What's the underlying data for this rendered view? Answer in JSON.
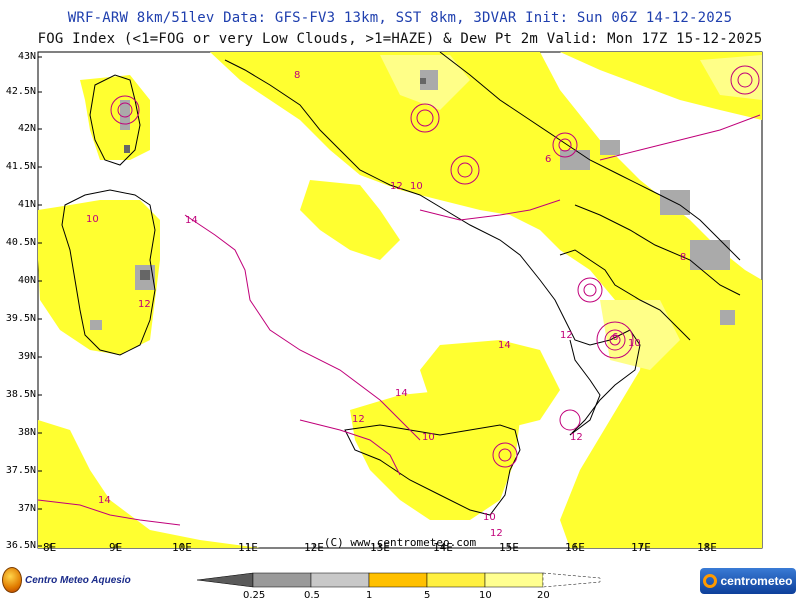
{
  "header": {
    "line1": "WRF-ARW 8km/51lev  Data: GFS-FV3 13km, SST 8km, 3DVAR  Init: Sun 06Z 14-12-2025",
    "line2": "FOG Index (<1=FOG or very Low Clouds, >1=HAZE) & Dew Pt 2m  Valid: Mon 17Z 15-12-2025"
  },
  "axes": {
    "lat_labels": [
      "43N",
      "42.5N",
      "42N",
      "41.5N",
      "41N",
      "40.5N",
      "40N",
      "39.5N",
      "39N",
      "38.5N",
      "38N",
      "37.5N",
      "37N",
      "36.5N"
    ],
    "lon_labels": [
      "8E",
      "9E",
      "10E",
      "11E",
      "12E",
      "13E",
      "14E",
      "15E",
      "16E",
      "17E",
      "18E"
    ]
  },
  "credit": "(C) www.centrometeo.com",
  "logos": {
    "left": "Centro Meteo Aquesio",
    "right": "centrometeo"
  },
  "legend": {
    "labels": [
      "0.25",
      "0.5",
      "1",
      "5",
      "10",
      "20"
    ],
    "colors": [
      "#5a5a5a",
      "#9a9a9a",
      "#c8c8c8",
      "#ffc000",
      "#fff040",
      "#ffff90"
    ]
  },
  "colors": {
    "sea": "#ffffff",
    "haze_yellow": "#ffff30",
    "haze_light": "#ffff88",
    "fog_gray": "#aaaaaa",
    "dewpoint_contour": "#c0007a",
    "coast": "#000000"
  },
  "contour_labels": [
    "14",
    "12",
    "10",
    "8",
    "6",
    "12",
    "10",
    "14",
    "12",
    "10",
    "14",
    "12",
    "10",
    "8",
    "6",
    "12",
    "10",
    "12",
    "14"
  ]
}
